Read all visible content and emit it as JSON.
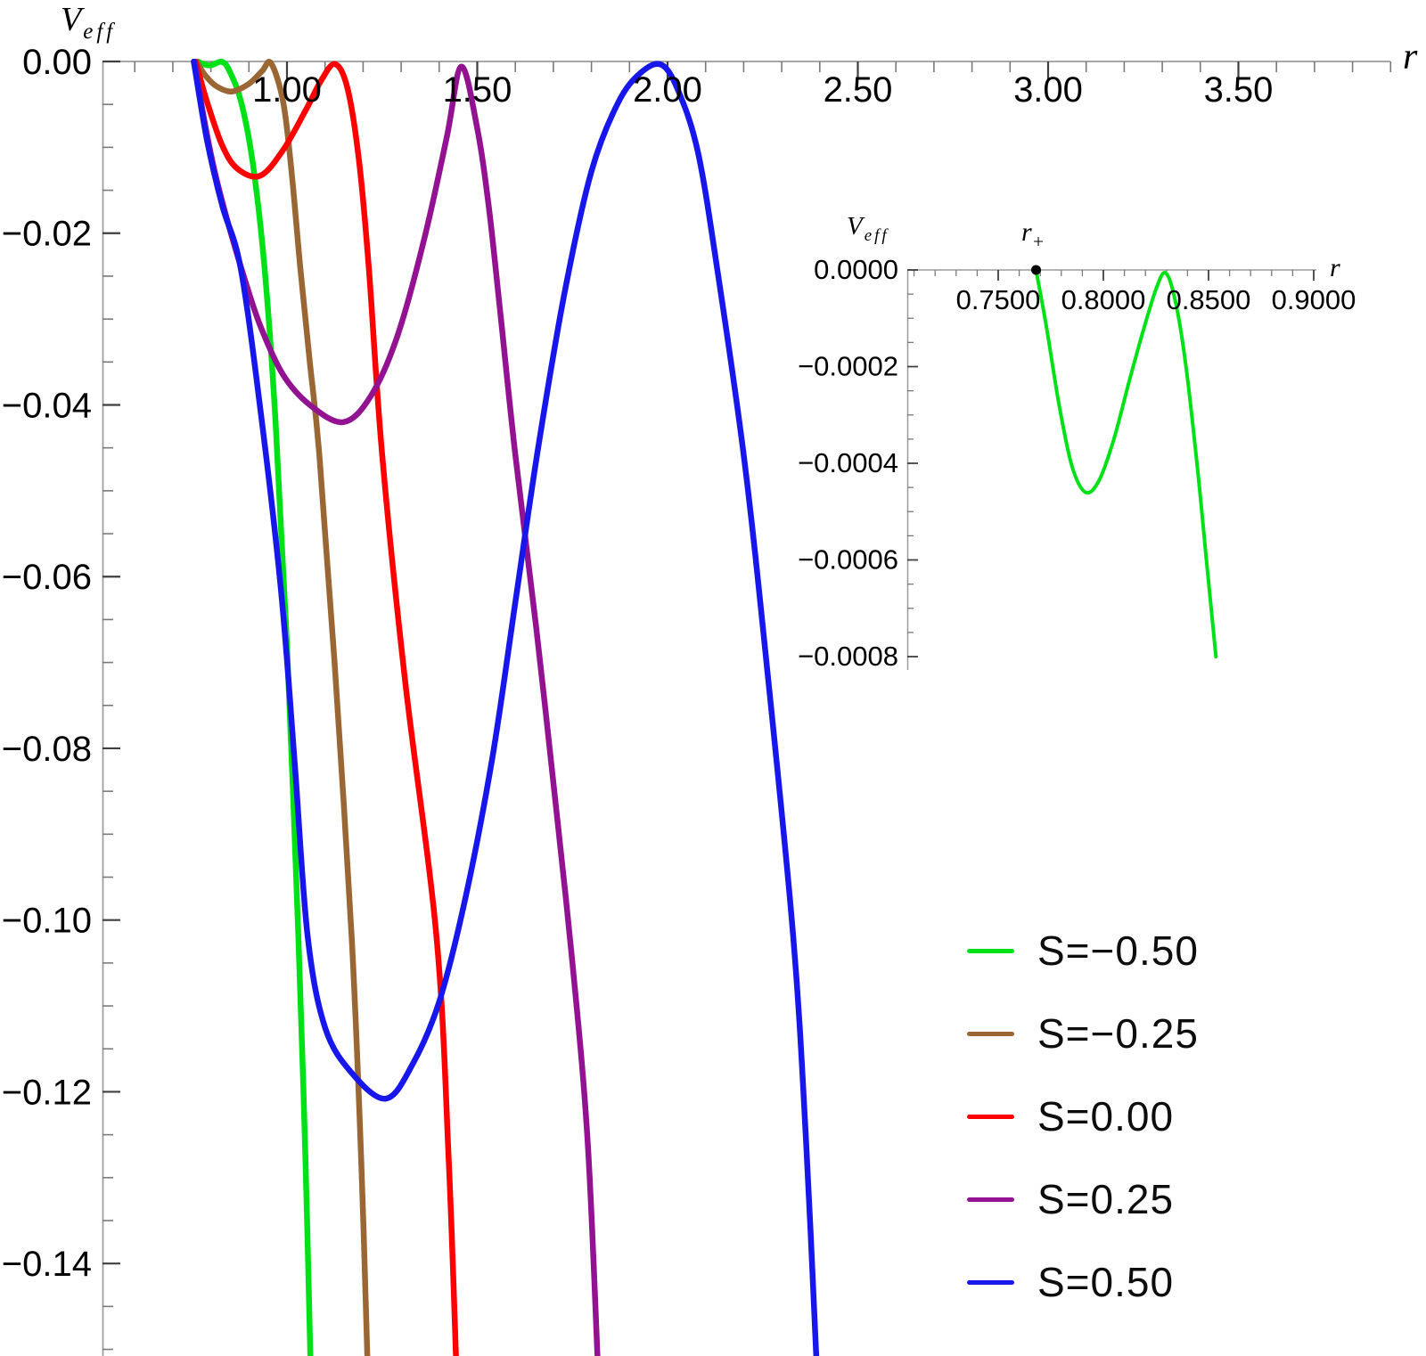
{
  "figure": {
    "background": "#ffffff",
    "ylabel_base": "V",
    "ylabel_sub": "eff",
    "xlabel": "r",
    "inset_ylabel_base": "V",
    "inset_ylabel_sub": "eff",
    "inset_xlabel": "r"
  },
  "chart_data": {
    "type": "line",
    "title": "",
    "xlabel": "r",
    "ylabel": "V_eff",
    "xlim": [
      0.51,
      3.9
    ],
    "ylim": [
      -0.151,
      0.0
    ],
    "grid": false,
    "legend_position": "lower-right",
    "x_major_ticks": [
      1.0,
      1.5,
      2.0,
      2.5,
      3.0,
      3.5
    ],
    "x_major_labels": [
      "1.00",
      "1.50",
      "2.00",
      "2.50",
      "3.00",
      "3.50"
    ],
    "x_minor_step": 0.1,
    "y_major_ticks": [
      0,
      -0.02,
      -0.04,
      -0.06,
      -0.08,
      -0.1,
      -0.12,
      -0.14
    ],
    "y_major_labels": [
      "0.00",
      "−0.02",
      "−0.04",
      "−0.06",
      "−0.08",
      "−0.10",
      "−0.12",
      "−0.14"
    ],
    "y_minor_step": 0.005,
    "series": [
      {
        "name": "S=−0.50",
        "color": "#00E118",
        "points": [
          [
            0.766,
            0
          ],
          [
            0.78,
            -0.0003
          ],
          [
            0.8,
            -0.00045
          ],
          [
            0.8295,
            -5e-05
          ],
          [
            0.85,
            -0.0012
          ],
          [
            0.88,
            -0.0048
          ],
          [
            0.91,
            -0.0118
          ],
          [
            0.941,
            -0.024
          ],
          [
            0.97,
            -0.042
          ],
          [
            1.0,
            -0.068
          ],
          [
            1.03,
            -0.102
          ],
          [
            1.048,
            -0.127
          ],
          [
            1.062,
            -0.152
          ]
        ]
      },
      {
        "name": "S=−0.25",
        "color": "#9A6633",
        "points": [
          [
            0.762,
            0
          ],
          [
            0.785,
            -0.0016
          ],
          [
            0.815,
            -0.0029
          ],
          [
            0.855,
            -0.0035
          ],
          [
            0.9,
            -0.0026
          ],
          [
            0.935,
            -0.0011
          ],
          [
            0.958,
            -0.0002
          ],
          [
            0.99,
            -0.0047
          ],
          [
            1.012,
            -0.0128
          ],
          [
            1.035,
            -0.024
          ],
          [
            1.06,
            -0.035
          ],
          [
            1.085,
            -0.0458
          ],
          [
            1.125,
            -0.07
          ],
          [
            1.17,
            -0.102
          ],
          [
            1.195,
            -0.128
          ],
          [
            1.212,
            -0.152
          ]
        ]
      },
      {
        "name": "S=0.00",
        "color": "#FF0000",
        "points": [
          [
            0.76,
            0
          ],
          [
            0.79,
            -0.0047
          ],
          [
            0.83,
            -0.0098
          ],
          [
            0.87,
            -0.0125
          ],
          [
            0.93,
            -0.0133
          ],
          [
            0.99,
            -0.0103
          ],
          [
            1.05,
            -0.0056
          ],
          [
            1.09,
            -0.0022
          ],
          [
            1.127,
            -0.0003
          ],
          [
            1.16,
            -0.0033
          ],
          [
            1.19,
            -0.0118
          ],
          [
            1.215,
            -0.024
          ],
          [
            1.25,
            -0.0458
          ],
          [
            1.31,
            -0.072
          ],
          [
            1.393,
            -0.102
          ],
          [
            1.425,
            -0.128
          ],
          [
            1.445,
            -0.152
          ]
        ]
      },
      {
        "name": "S=0.25",
        "color": "#921292",
        "points": [
          [
            0.757,
            0
          ],
          [
            0.78,
            -0.0062
          ],
          [
            0.81,
            -0.0128
          ],
          [
            0.845,
            -0.0188
          ],
          [
            0.885,
            -0.0248
          ],
          [
            0.93,
            -0.0308
          ],
          [
            0.99,
            -0.0365
          ],
          [
            1.06,
            -0.04
          ],
          [
            1.148,
            -0.042
          ],
          [
            1.22,
            -0.039
          ],
          [
            1.29,
            -0.032
          ],
          [
            1.36,
            -0.0208
          ],
          [
            1.42,
            -0.0088
          ],
          [
            1.458,
            -0.0006
          ],
          [
            1.5,
            -0.0078
          ],
          [
            1.53,
            -0.0168
          ],
          [
            1.56,
            -0.029
          ],
          [
            1.6,
            -0.0458
          ],
          [
            1.655,
            -0.066
          ],
          [
            1.7,
            -0.084
          ],
          [
            1.75,
            -0.105
          ],
          [
            1.79,
            -0.1257
          ],
          [
            1.817,
            -0.152
          ]
        ]
      },
      {
        "name": "S=0.50",
        "color": "#1717EB",
        "points": [
          [
            0.755,
            0
          ],
          [
            0.79,
            -0.0092
          ],
          [
            0.83,
            -0.0168
          ],
          [
            0.878,
            -0.024
          ],
          [
            0.93,
            -0.0405
          ],
          [
            0.984,
            -0.0615
          ],
          [
            1.02,
            -0.0815
          ],
          [
            1.054,
            -0.1018
          ],
          [
            1.1,
            -0.1125
          ],
          [
            1.17,
            -0.1178
          ],
          [
            1.26,
            -0.1208
          ],
          [
            1.33,
            -0.1168
          ],
          [
            1.4,
            -0.1095
          ],
          [
            1.47,
            -0.0972
          ],
          [
            1.54,
            -0.081
          ],
          [
            1.6,
            -0.063
          ],
          [
            1.66,
            -0.045
          ],
          [
            1.73,
            -0.0268
          ],
          [
            1.8,
            -0.0128
          ],
          [
            1.87,
            -0.0048
          ],
          [
            1.93,
            -0.0013
          ],
          [
            1.985,
            -0.0004
          ],
          [
            2.03,
            -0.0036
          ],
          [
            2.08,
            -0.0106
          ],
          [
            2.13,
            -0.024
          ],
          [
            2.2,
            -0.0458
          ],
          [
            2.26,
            -0.07
          ],
          [
            2.33,
            -0.1018
          ],
          [
            2.364,
            -0.1257
          ],
          [
            2.392,
            -0.152
          ]
        ]
      }
    ],
    "inset": {
      "xlabel": "r",
      "ylabel": "V_eff",
      "xlim": [
        0.707,
        0.901
      ],
      "ylim": [
        -0.00082,
        0.0
      ],
      "x_major_ticks": [
        0.75,
        0.8,
        0.85,
        0.9
      ],
      "x_major_labels": [
        "0.7500",
        "0.8000",
        "0.8500",
        "0.9000"
      ],
      "x_minor_step": 0.01,
      "y_major_ticks": [
        0,
        -0.0002,
        -0.0004,
        -0.0006,
        -0.0008
      ],
      "y_major_labels": [
        "0.0000",
        "−0.0002",
        "−0.0004",
        "−0.0006",
        "−0.0008"
      ],
      "y_minor_step": 5e-05,
      "marker": {
        "label_base": "r",
        "label_sub": "+",
        "r": 0.768,
        "v": 0
      },
      "series": [
        {
          "name": "S=−0.50",
          "color": "#00E118",
          "points": [
            [
              0.768,
              0
            ],
            [
              0.773,
              -0.00012
            ],
            [
              0.779,
              -0.00028
            ],
            [
              0.785,
              -0.000405
            ],
            [
              0.7915,
              -0.00046
            ],
            [
              0.798,
              -0.000435
            ],
            [
              0.805,
              -0.00035
            ],
            [
              0.812,
              -0.000235
            ],
            [
              0.819,
              -0.000125
            ],
            [
              0.825,
              -4e-05
            ],
            [
              0.8295,
              -6e-06
            ],
            [
              0.834,
              -6e-05
            ],
            [
              0.839,
              -0.00019
            ],
            [
              0.8445,
              -0.0004
            ],
            [
              0.849,
              -0.0006
            ],
            [
              0.8535,
              -0.0008
            ]
          ]
        }
      ]
    }
  },
  "legend": {
    "entries": [
      {
        "label": "S=−0.50",
        "color": "#00E118"
      },
      {
        "label": "S=−0.25",
        "color": "#9A6633"
      },
      {
        "label": "S=0.00",
        "color": "#FF0000"
      },
      {
        "label": "S=0.25",
        "color": "#921292"
      },
      {
        "label": "S=0.50",
        "color": "#1717EB"
      }
    ]
  }
}
